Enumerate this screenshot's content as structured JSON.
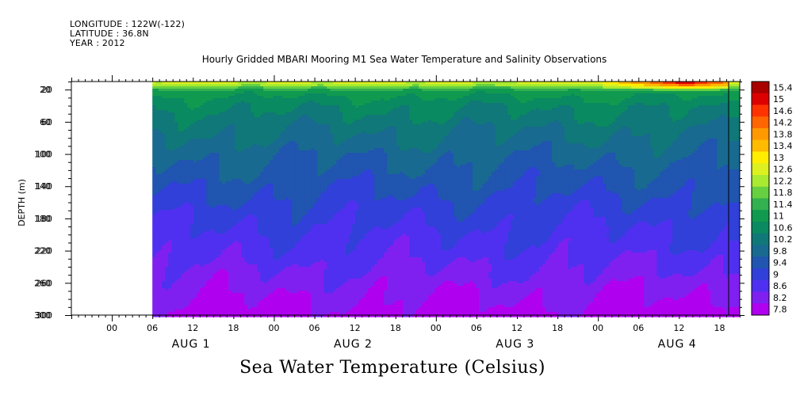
{
  "header": {
    "longitude": "LONGITUDE : 122W(-122)",
    "latitude": "LATITUDE : 36.8N",
    "year": "YEAR : 2012"
  },
  "bottom_title": "Sea Water Temperature (Celsius)",
  "chart_data": {
    "type": "heatmap",
    "title": "Hourly Gridded MBARI Mooring M1 Sea Water Temperature and Salinity Observations",
    "ylabel": "DEPTH (m)",
    "y_ticks": [
      "20",
      "60",
      "100",
      "140",
      "180",
      "220",
      "260",
      "300"
    ],
    "y_tick_labels_overprinted": [
      "20",
      "60",
      "100",
      "140",
      "180",
      "220",
      "260",
      "300"
    ],
    "ylim": [
      10,
      300
    ],
    "y_inverted": true,
    "x_hour_labels": [
      "00",
      "06",
      "12",
      "18",
      "00",
      "06",
      "12",
      "18",
      "00",
      "06",
      "12",
      "18",
      "00",
      "06",
      "12",
      "18"
    ],
    "x_day_labels": [
      "AUG 1",
      "AUG 2",
      "AUG 3",
      "AUG 4"
    ],
    "x_range_hours": [
      -6,
      93
    ],
    "data_start_hour": 6,
    "colorbar_levels": [
      "15.4",
      "15",
      "14.6",
      "14.2",
      "13.8",
      "13.4",
      "13",
      "12.6",
      "12.2",
      "11.8",
      "11.4",
      "11",
      "10.6",
      "10.2",
      "9.8",
      "9.4",
      "9",
      "8.6",
      "8.2",
      "7.8"
    ],
    "colorbar_colors": [
      "#aa0000",
      "#dd0000",
      "#ff3300",
      "#ff6600",
      "#ff9900",
      "#ffbb00",
      "#ffee00",
      "#ddf020",
      "#aaea30",
      "#66d040",
      "#33b050",
      "#109a50",
      "#0a8a60",
      "#107878",
      "#186a90",
      "#2055b0",
      "#3040d8",
      "#5030f0",
      "#8020f0",
      "#b000f0"
    ],
    "colorbar_range": [
      7.8,
      15.4
    ],
    "depth_profile": [
      {
        "depth": 10,
        "temp": 12.8
      },
      {
        "depth": 15,
        "temp": 12.2
      },
      {
        "depth": 22,
        "temp": 11.2
      },
      {
        "depth": 40,
        "temp": 10.7
      },
      {
        "depth": 60,
        "temp": 10.4
      },
      {
        "depth": 100,
        "temp": 9.9
      },
      {
        "depth": 140,
        "temp": 9.5
      },
      {
        "depth": 180,
        "temp": 9.1
      },
      {
        "depth": 220,
        "temp": 8.8
      },
      {
        "depth": 260,
        "temp": 8.4
      },
      {
        "depth": 300,
        "temp": 8.0
      }
    ],
    "warm_surface_event": {
      "hour_start": 78,
      "hour_end": 91,
      "peak_temp": 15.4
    },
    "grid": false,
    "legend_placement": "right"
  }
}
